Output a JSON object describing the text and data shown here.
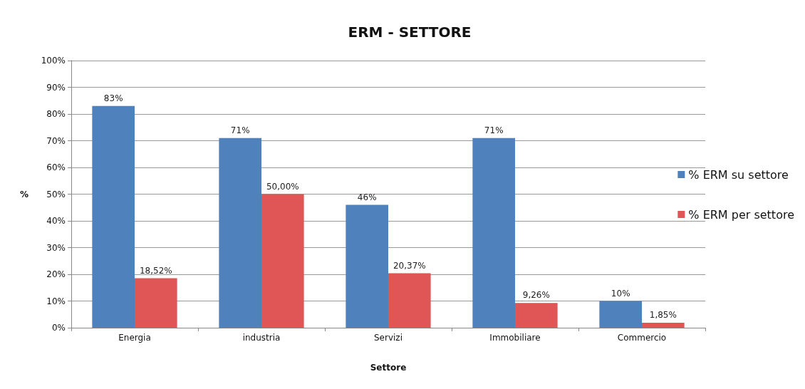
{
  "chart_data": {
    "type": "bar",
    "title": "ERM - SETTORE",
    "xlabel": "Settore",
    "ylabel": "%",
    "categories": [
      "Energia",
      "industria",
      "Servizi",
      "Immobiliare",
      "Commercio"
    ],
    "series": [
      {
        "name": "% ERM su settore",
        "color": "#4f81bd",
        "values": [
          83,
          71,
          46,
          71,
          10
        ],
        "value_labels": [
          "83%",
          "71%",
          "46%",
          "71%",
          "10%"
        ]
      },
      {
        "name": "% ERM per settore",
        "color": "#e05555",
        "values": [
          18.52,
          50,
          20.37,
          9.26,
          1.85
        ],
        "value_labels": [
          "18,52%",
          "50,00%",
          "20,37%",
          "9,26%",
          "1,85%"
        ]
      }
    ],
    "ylim": [
      0,
      100
    ],
    "yticks": [
      {
        "value": 0,
        "label": "0%"
      },
      {
        "value": 10,
        "label": "10%"
      },
      {
        "value": 20,
        "label": "20%"
      },
      {
        "value": 30,
        "label": "30%"
      },
      {
        "value": 40,
        "label": "40%"
      },
      {
        "value": 50,
        "label": "50%"
      },
      {
        "value": 60,
        "label": "60%"
      },
      {
        "value": 70,
        "label": "70%"
      },
      {
        "value": 80,
        "label": "80%"
      },
      {
        "value": 90,
        "label": "90%"
      },
      {
        "value": 100,
        "label": "100%"
      }
    ],
    "grid": "y",
    "legend": "right"
  }
}
